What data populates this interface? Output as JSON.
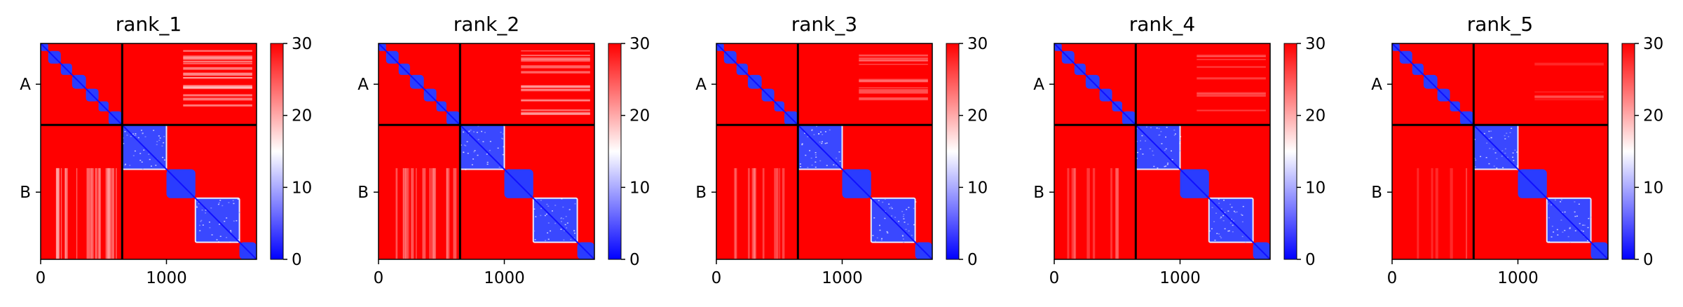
{
  "figure": {
    "colors": {
      "low": "#0000ff",
      "mid": "#ffffff",
      "high": "#ff0000",
      "frame": "#000000"
    }
  },
  "chart_data": [
    {
      "type": "heatmap",
      "title": "rank_1",
      "colorbar": {
        "ticks": [
          0,
          10,
          20,
          30
        ],
        "labels": [
          "0",
          "10",
          "20",
          "30"
        ],
        "vmin": 0,
        "vmax": 30,
        "colormap": "bwr"
      },
      "x_ticks": [
        0,
        1000
      ],
      "x_tick_labels": [
        "0",
        "1000"
      ],
      "xlim": [
        0,
        1716
      ],
      "chains": [
        {
          "label": "A",
          "start": 0,
          "end": 648
        },
        {
          "label": "B",
          "start": 648,
          "end": 1716
        }
      ],
      "domains": [
        [
          0,
          60
        ],
        [
          60,
          160
        ],
        [
          160,
          250
        ],
        [
          250,
          360
        ],
        [
          360,
          460
        ],
        [
          460,
          540
        ],
        [
          540,
          648
        ],
        [
          648,
          1000
        ],
        [
          1000,
          1230
        ],
        [
          1230,
          1580
        ],
        [
          1580,
          1716
        ]
      ],
      "grid": false
    },
    {
      "type": "heatmap",
      "title": "rank_2",
      "colorbar": {
        "ticks": [
          0,
          10,
          20,
          30
        ],
        "labels": [
          "0",
          "10",
          "20",
          "30"
        ],
        "vmin": 0,
        "vmax": 30,
        "colormap": "bwr"
      },
      "x_ticks": [
        0,
        1000
      ],
      "x_tick_labels": [
        "0",
        "1000"
      ],
      "xlim": [
        0,
        1716
      ],
      "chains": [
        {
          "label": "A",
          "start": 0,
          "end": 648
        },
        {
          "label": "B",
          "start": 648,
          "end": 1716
        }
      ],
      "domains": [
        [
          0,
          60
        ],
        [
          60,
          160
        ],
        [
          160,
          250
        ],
        [
          250,
          360
        ],
        [
          360,
          460
        ],
        [
          460,
          540
        ],
        [
          540,
          648
        ],
        [
          648,
          1000
        ],
        [
          1000,
          1230
        ],
        [
          1230,
          1580
        ],
        [
          1580,
          1716
        ]
      ],
      "grid": false
    },
    {
      "type": "heatmap",
      "title": "rank_3",
      "colorbar": {
        "ticks": [
          0,
          10,
          20,
          30
        ],
        "labels": [
          "0",
          "10",
          "20",
          "30"
        ],
        "vmin": 0,
        "vmax": 30,
        "colormap": "bwr"
      },
      "x_ticks": [
        0,
        1000
      ],
      "x_tick_labels": [
        "0",
        "1000"
      ],
      "xlim": [
        0,
        1716
      ],
      "chains": [
        {
          "label": "A",
          "start": 0,
          "end": 648
        },
        {
          "label": "B",
          "start": 648,
          "end": 1716
        }
      ],
      "domains": [
        [
          0,
          60
        ],
        [
          60,
          160
        ],
        [
          160,
          250
        ],
        [
          250,
          360
        ],
        [
          360,
          460
        ],
        [
          460,
          540
        ],
        [
          540,
          648
        ],
        [
          648,
          1000
        ],
        [
          1000,
          1230
        ],
        [
          1230,
          1580
        ],
        [
          1580,
          1716
        ]
      ],
      "grid": false
    },
    {
      "type": "heatmap",
      "title": "rank_4",
      "colorbar": {
        "ticks": [
          0,
          10,
          20,
          30
        ],
        "labels": [
          "0",
          "10",
          "20",
          "30"
        ],
        "vmin": 0,
        "vmax": 30,
        "colormap": "bwr"
      },
      "x_ticks": [
        0,
        1000
      ],
      "x_tick_labels": [
        "0",
        "1000"
      ],
      "xlim": [
        0,
        1716
      ],
      "chains": [
        {
          "label": "A",
          "start": 0,
          "end": 648
        },
        {
          "label": "B",
          "start": 648,
          "end": 1716
        }
      ],
      "domains": [
        [
          0,
          60
        ],
        [
          60,
          160
        ],
        [
          160,
          250
        ],
        [
          250,
          360
        ],
        [
          360,
          460
        ],
        [
          460,
          540
        ],
        [
          540,
          648
        ],
        [
          648,
          1000
        ],
        [
          1000,
          1230
        ],
        [
          1230,
          1580
        ],
        [
          1580,
          1716
        ]
      ],
      "grid": false
    },
    {
      "type": "heatmap",
      "title": "rank_5",
      "colorbar": {
        "ticks": [
          0,
          10,
          20,
          30
        ],
        "labels": [
          "0",
          "10",
          "20",
          "30"
        ],
        "vmin": 0,
        "vmax": 30,
        "colormap": "bwr"
      },
      "x_ticks": [
        0,
        1000
      ],
      "x_tick_labels": [
        "0",
        "1000"
      ],
      "xlim": [
        0,
        1716
      ],
      "chains": [
        {
          "label": "A",
          "start": 0,
          "end": 648
        },
        {
          "label": "B",
          "start": 648,
          "end": 1716
        }
      ],
      "domains": [
        [
          0,
          60
        ],
        [
          60,
          160
        ],
        [
          160,
          250
        ],
        [
          250,
          360
        ],
        [
          360,
          460
        ],
        [
          460,
          540
        ],
        [
          540,
          648
        ],
        [
          648,
          1000
        ],
        [
          1000,
          1230
        ],
        [
          1230,
          1580
        ],
        [
          1580,
          1716
        ]
      ],
      "grid": false
    }
  ]
}
